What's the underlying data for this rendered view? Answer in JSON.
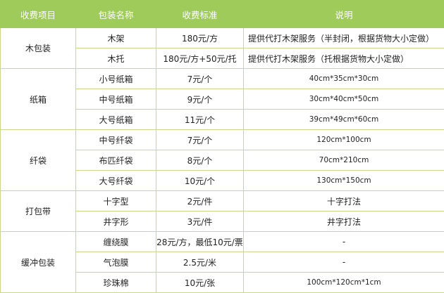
{
  "colors": {
    "header_bg": "#9fcb5b",
    "header_text": "#ffffff",
    "border": "#c9d98c"
  },
  "headers": [
    "收费项目",
    "包装名称",
    "收费标准",
    "说明"
  ],
  "groups": [
    {
      "category": "木包装",
      "rows": [
        {
          "name": "木架",
          "price": "180元/方",
          "note": "提供代打木架服务（半封闭，根据货物大小定做）",
          "align": "left"
        },
        {
          "name": "木托",
          "price": "180元/方+50元/托",
          "note": "提供代打木架服务（托根据货物大小定做）",
          "align": "left"
        }
      ]
    },
    {
      "category": "纸箱",
      "rows": [
        {
          "name": "小号纸箱",
          "price": "7元/个",
          "note": "40cm*35cm*30cm",
          "align": "dim"
        },
        {
          "name": "中号纸箱",
          "price": "9元/个",
          "note": "30cm*40cm*50cm",
          "align": "dim"
        },
        {
          "name": "大号纸箱",
          "price": "11元/个",
          "note": "39cm*49cm*60cm",
          "align": "dim"
        }
      ]
    },
    {
      "category": "纤袋",
      "rows": [
        {
          "name": "中号纤袋",
          "price": "7元/个",
          "note": "120cm*100cm",
          "align": "dim"
        },
        {
          "name": "布匹纤袋",
          "price": "8元/个",
          "note": "70cm*210cm",
          "align": "dim"
        },
        {
          "name": "大号纤袋",
          "price": "10元/个",
          "note": "130cm*150cm",
          "align": "dim"
        }
      ]
    },
    {
      "category": "打包带",
      "rows": [
        {
          "name": "十字型",
          "price": "2元/件",
          "note": "十字打法",
          "align": ""
        },
        {
          "name": "井字形",
          "price": "3元/件",
          "note": "井字打法",
          "align": ""
        }
      ]
    },
    {
      "category": "缓冲包装",
      "rows": [
        {
          "name": "缠绕膜",
          "price": "28元/方，最低10元/票",
          "note": "-",
          "align": ""
        },
        {
          "name": "气泡膜",
          "price": "2.5元/米",
          "note": "-",
          "align": ""
        },
        {
          "name": "珍珠棉",
          "price": "10元/张",
          "note": "100cm*120cm*1cm",
          "align": "dim"
        }
      ]
    }
  ]
}
